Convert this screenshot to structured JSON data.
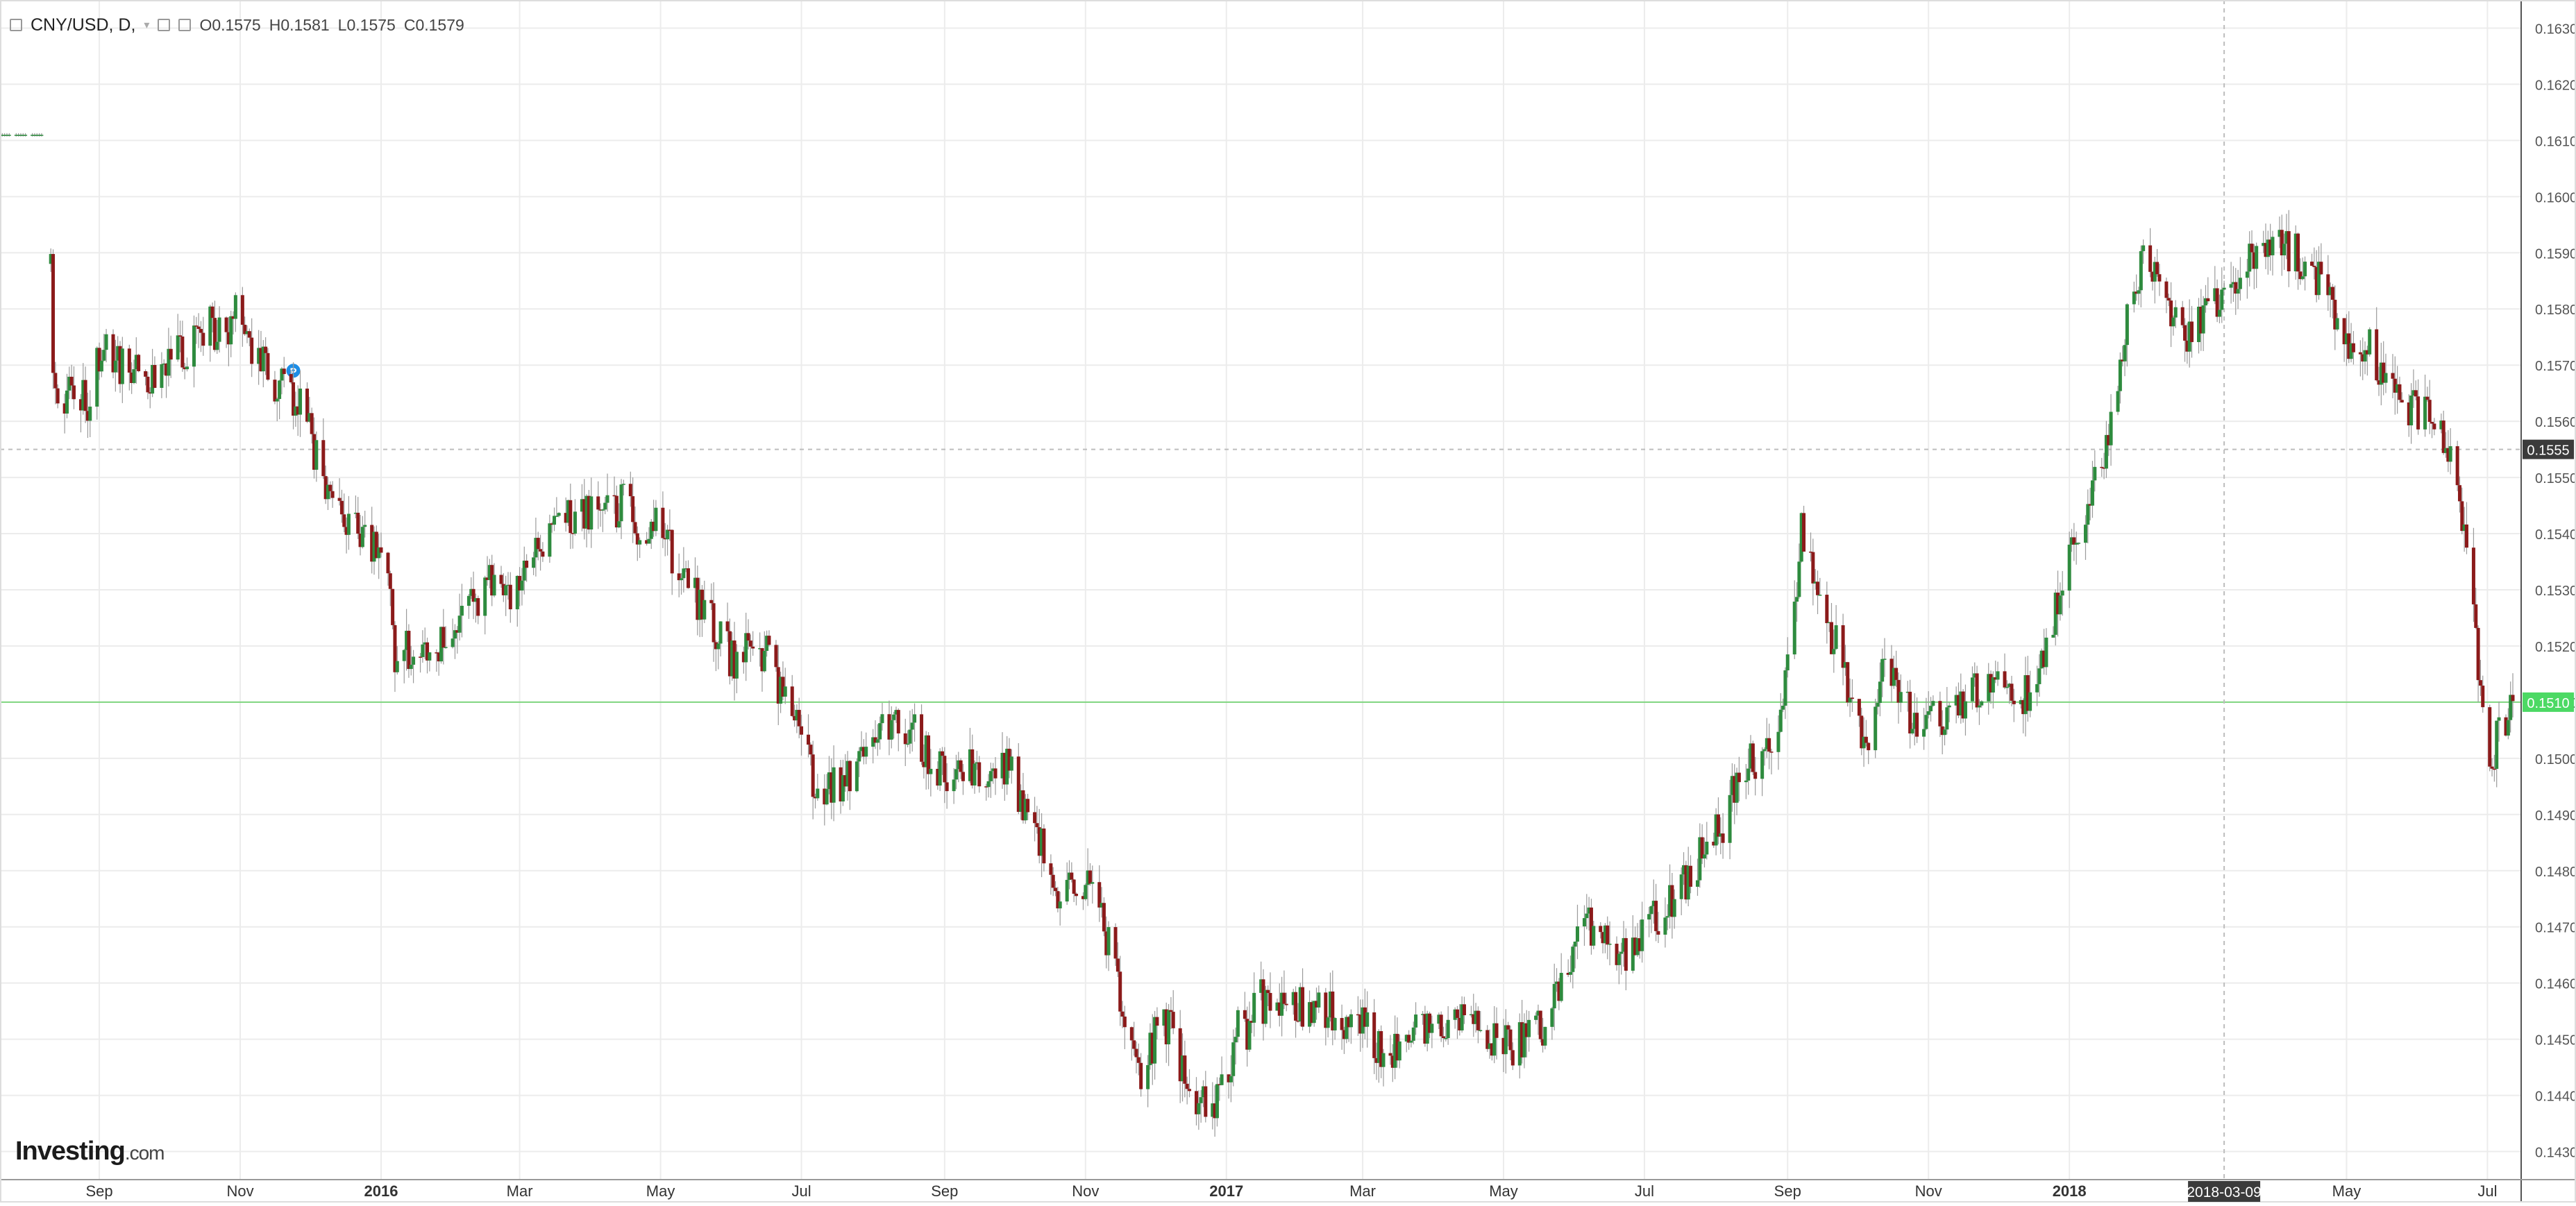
{
  "header": {
    "symbol": "CNY/USD, D,",
    "open_label": "O",
    "open_value": "0.1575",
    "high_label": "H",
    "high_value": "0.1581",
    "low_label": "L",
    "low_value": "0.1575",
    "close_label": "C",
    "close_value": "0.1579"
  },
  "watermark": {
    "brand": "Investing",
    "suffix": ".com"
  },
  "colors": {
    "up": "#2e8b3e",
    "down": "#8b1a1a",
    "grid": "#ececec",
    "crosshair": "#bdbdbd",
    "current_price": "#7fd67f",
    "current_price_label_bg": "#4cd964",
    "crosshair_label_bg": "#3b3b3b"
  },
  "chart_data": {
    "type": "candlestick",
    "title": "CNY/USD, D,",
    "x_range": [
      "2015-07-20",
      "2018-07-12"
    ],
    "ylim": [
      0.1425,
      0.1635
    ],
    "y_ticks": [
      0.163,
      0.162,
      0.161,
      0.16,
      0.159,
      0.158,
      0.157,
      0.156,
      0.155,
      0.154,
      0.153,
      0.152,
      0.151,
      0.15,
      0.149,
      0.148,
      0.147,
      0.146,
      0.145,
      0.144,
      0.143
    ],
    "x_tick_labels": [
      {
        "date": "2015-09-01",
        "label": "Sep",
        "bold": false
      },
      {
        "date": "2015-11-01",
        "label": "Nov",
        "bold": false
      },
      {
        "date": "2016-01-01",
        "label": "2016",
        "bold": true
      },
      {
        "date": "2016-03-01",
        "label": "Mar",
        "bold": false
      },
      {
        "date": "2016-05-01",
        "label": "May",
        "bold": false
      },
      {
        "date": "2016-07-01",
        "label": "Jul",
        "bold": false
      },
      {
        "date": "2016-09-01",
        "label": "Sep",
        "bold": false
      },
      {
        "date": "2016-11-01",
        "label": "Nov",
        "bold": false
      },
      {
        "date": "2017-01-01",
        "label": "2017",
        "bold": true
      },
      {
        "date": "2017-03-01",
        "label": "Mar",
        "bold": false
      },
      {
        "date": "2017-05-01",
        "label": "May",
        "bold": false
      },
      {
        "date": "2017-07-01",
        "label": "Jul",
        "bold": false
      },
      {
        "date": "2017-09-01",
        "label": "Sep",
        "bold": false
      },
      {
        "date": "2017-11-01",
        "label": "Nov",
        "bold": false
      },
      {
        "date": "2018-01-01",
        "label": "2018",
        "bold": true
      },
      {
        "date": "2018-05-01",
        "label": "May",
        "bold": false
      },
      {
        "date": "2018-07-01",
        "label": "Jul",
        "bold": false
      }
    ],
    "grid": true,
    "current_price": {
      "value": 0.151,
      "label": "0.1510"
    },
    "crosshair": {
      "date": "2018-03-09",
      "date_label": "2018-03-09",
      "price": 0.1555,
      "price_label": "0.1555"
    },
    "annotation": {
      "date": "2015-11-24",
      "price": 0.1569,
      "label": "P"
    },
    "anchors": [
      [
        "2015-07-20",
        0.1611
      ],
      [
        "2015-07-31",
        0.1611
      ],
      [
        "2015-08-07",
        0.1611
      ],
      [
        "2015-08-11",
        0.1592
      ],
      [
        "2015-08-12",
        0.1567
      ],
      [
        "2015-08-14",
        0.1564
      ],
      [
        "2015-08-27",
        0.1564
      ],
      [
        "2015-09-02",
        0.1572
      ],
      [
        "2015-09-10",
        0.157
      ],
      [
        "2015-09-18",
        0.1569
      ],
      [
        "2015-09-25",
        0.1568
      ],
      [
        "2015-10-02",
        0.1573
      ],
      [
        "2015-10-09",
        0.1573
      ],
      [
        "2015-10-14",
        0.1577
      ],
      [
        "2015-10-20",
        0.1577
      ],
      [
        "2015-10-26",
        0.1574
      ],
      [
        "2015-10-29",
        0.1582
      ],
      [
        "2015-11-05",
        0.1575
      ],
      [
        "2015-11-13",
        0.1568
      ],
      [
        "2015-11-20",
        0.1565
      ],
      [
        "2015-11-27",
        0.1563
      ],
      [
        "2015-12-03",
        0.1555
      ],
      [
        "2015-12-10",
        0.1547
      ],
      [
        "2015-12-17",
        0.1543
      ],
      [
        "2015-12-24",
        0.1541
      ],
      [
        "2016-01-04",
        0.1534
      ],
      [
        "2016-01-07",
        0.1518
      ],
      [
        "2016-01-15",
        0.152
      ],
      [
        "2016-01-29",
        0.152
      ],
      [
        "2016-02-15",
        0.1531
      ],
      [
        "2016-02-26",
        0.1528
      ],
      [
        "2016-03-05",
        0.1533
      ],
      [
        "2016-03-18",
        0.1543
      ],
      [
        "2016-04-01",
        0.1544
      ],
      [
        "2016-04-08",
        0.1544
      ],
      [
        "2016-04-15",
        0.1545
      ],
      [
        "2016-04-22",
        0.154
      ],
      [
        "2016-04-29",
        0.1543
      ],
      [
        "2016-05-05",
        0.1537
      ],
      [
        "2016-05-20",
        0.1526
      ],
      [
        "2016-05-31",
        0.1518
      ],
      [
        "2016-06-10",
        0.1519
      ],
      [
        "2016-06-17",
        0.1518
      ],
      [
        "2016-06-27",
        0.1507
      ],
      [
        "2016-07-07",
        0.1496
      ],
      [
        "2016-07-15",
        0.1495
      ],
      [
        "2016-07-22",
        0.1497
      ],
      [
        "2016-07-29",
        0.1502
      ],
      [
        "2016-08-05",
        0.1506
      ],
      [
        "2016-08-12",
        0.1506
      ],
      [
        "2016-08-19",
        0.1504
      ],
      [
        "2016-08-26",
        0.15
      ],
      [
        "2016-09-02",
        0.1497
      ],
      [
        "2016-09-09",
        0.1498
      ],
      [
        "2016-09-23",
        0.1499
      ],
      [
        "2016-09-30",
        0.1499
      ],
      [
        "2016-10-07",
        0.1488
      ],
      [
        "2016-10-14",
        0.1484
      ],
      [
        "2016-10-21",
        0.1475
      ],
      [
        "2016-10-28",
        0.1478
      ],
      [
        "2016-11-04",
        0.1477
      ],
      [
        "2016-11-11",
        0.1467
      ],
      [
        "2016-11-18",
        0.1452
      ],
      [
        "2016-11-25",
        0.1445
      ],
      [
        "2016-12-01",
        0.145
      ],
      [
        "2016-12-08",
        0.1453
      ],
      [
        "2016-12-15",
        0.144
      ],
      [
        "2016-12-22",
        0.1439
      ],
      [
        "2016-12-30",
        0.144
      ],
      [
        "2017-01-05",
        0.1451
      ],
      [
        "2017-01-10",
        0.1452
      ],
      [
        "2017-01-13",
        0.1459
      ],
      [
        "2017-01-20",
        0.1454
      ],
      [
        "2017-02-03",
        0.1456
      ],
      [
        "2017-02-17",
        0.1455
      ],
      [
        "2017-03-01",
        0.1452
      ],
      [
        "2017-03-10",
        0.1447
      ],
      [
        "2017-03-17",
        0.145
      ],
      [
        "2017-03-24",
        0.1454
      ],
      [
        "2017-03-31",
        0.1452
      ],
      [
        "2017-04-07",
        0.145
      ],
      [
        "2017-04-14",
        0.1454
      ],
      [
        "2017-04-21",
        0.1452
      ],
      [
        "2017-04-28",
        0.145
      ],
      [
        "2017-05-05",
        0.1449
      ],
      [
        "2017-05-12",
        0.1452
      ],
      [
        "2017-05-19",
        0.1452
      ],
      [
        "2017-05-26",
        0.146
      ],
      [
        "2017-06-02",
        0.1468
      ],
      [
        "2017-06-09",
        0.1471
      ],
      [
        "2017-06-16",
        0.1469
      ],
      [
        "2017-06-23",
        0.1464
      ],
      [
        "2017-06-30",
        0.147
      ],
      [
        "2017-07-07",
        0.1472
      ],
      [
        "2017-07-14",
        0.1476
      ],
      [
        "2017-07-21",
        0.148
      ],
      [
        "2017-07-28",
        0.1484
      ],
      [
        "2017-08-04",
        0.1488
      ],
      [
        "2017-08-11",
        0.1498
      ],
      [
        "2017-08-18",
        0.15
      ],
      [
        "2017-08-25",
        0.1503
      ],
      [
        "2017-09-01",
        0.1516
      ],
      [
        "2017-09-07",
        0.1541
      ],
      [
        "2017-09-12",
        0.1532
      ],
      [
        "2017-09-15",
        0.1527
      ],
      [
        "2017-09-22",
        0.152
      ],
      [
        "2017-09-29",
        0.151
      ],
      [
        "2017-10-06",
        0.1502
      ],
      [
        "2017-10-13",
        0.1516
      ],
      [
        "2017-10-20",
        0.1513
      ],
      [
        "2017-10-27",
        0.1505
      ],
      [
        "2017-11-03",
        0.151
      ],
      [
        "2017-11-10",
        0.1506
      ],
      [
        "2017-11-17",
        0.151
      ],
      [
        "2017-11-24",
        0.1513
      ],
      [
        "2017-12-01",
        0.1512
      ],
      [
        "2017-12-08",
        0.151
      ],
      [
        "2017-12-15",
        0.1512
      ],
      [
        "2017-12-22",
        0.152
      ],
      [
        "2017-12-29",
        0.153
      ],
      [
        "2018-01-05",
        0.1541
      ],
      [
        "2018-01-12",
        0.155
      ],
      [
        "2018-01-19",
        0.1559
      ],
      [
        "2018-01-26",
        0.1578
      ],
      [
        "2018-02-02",
        0.1588
      ],
      [
        "2018-02-09",
        0.1583
      ],
      [
        "2018-02-16",
        0.1577
      ],
      [
        "2018-02-23",
        0.1576
      ],
      [
        "2018-03-02",
        0.1582
      ],
      [
        "2018-03-09",
        0.158
      ],
      [
        "2018-03-16",
        0.1584
      ],
      [
        "2018-03-23",
        0.1592
      ],
      [
        "2018-03-30",
        0.1593
      ],
      [
        "2018-04-06",
        0.159
      ],
      [
        "2018-04-13",
        0.1589
      ],
      [
        "2018-04-20",
        0.1584
      ],
      [
        "2018-04-27",
        0.1578
      ],
      [
        "2018-05-04",
        0.1571
      ],
      [
        "2018-05-11",
        0.1573
      ],
      [
        "2018-05-18",
        0.1567
      ],
      [
        "2018-05-25",
        0.1564
      ],
      [
        "2018-06-01",
        0.1561
      ],
      [
        "2018-06-08",
        0.1562
      ],
      [
        "2018-06-15",
        0.1552
      ],
      [
        "2018-06-22",
        0.154
      ],
      [
        "2018-06-29",
        0.1508
      ],
      [
        "2018-07-03",
        0.15
      ],
      [
        "2018-07-06",
        0.1505
      ],
      [
        "2018-07-12",
        0.151
      ]
    ]
  }
}
